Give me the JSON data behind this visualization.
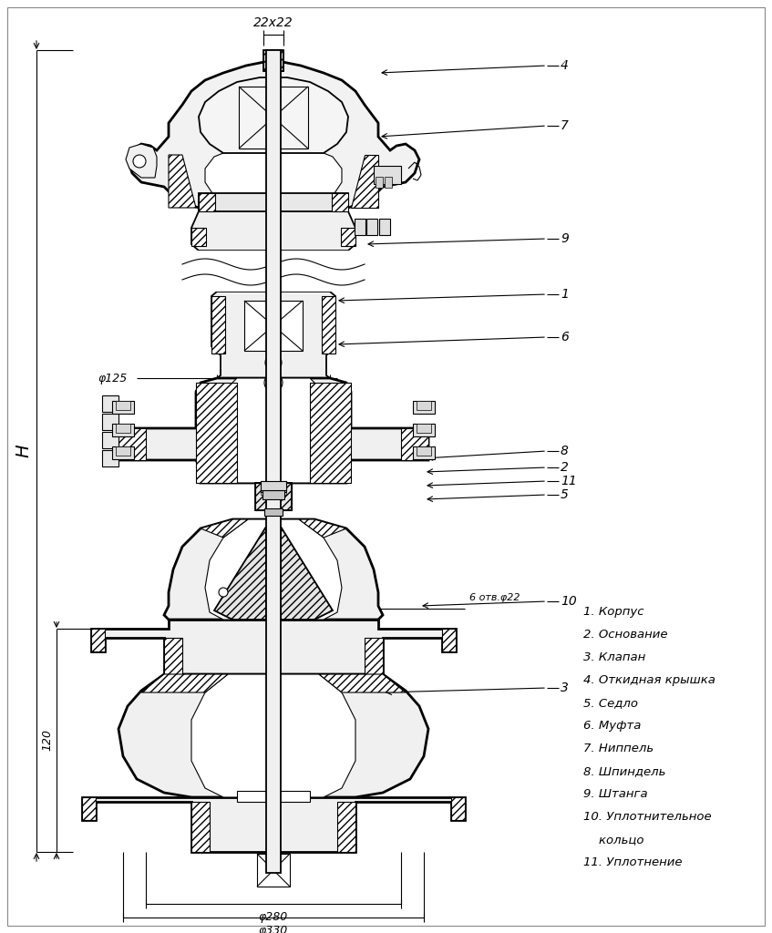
{
  "bg_color": "#ffffff",
  "line_color": "#000000",
  "figsize": [
    8.47,
    10.24
  ],
  "dpi": 100,
  "annotations": {
    "dim_22x22": "22x22",
    "dim_phi125": "φ125",
    "dim_phi280": "φ280",
    "dim_phi330": "φ330",
    "dim_H": "H",
    "dim_120": "120",
    "dim_6otv": "6 отв.φ22"
  },
  "legend": [
    "1. Корпус",
    "2. Основание",
    "3. Клапан",
    "4. Откидная крышка",
    "5. Седло",
    "6. Муфта",
    "7. Ниппель",
    "8. Шпиндель",
    "9. Штанга",
    "10. Уплотнительное",
    "    кольцо",
    "11. Уплотнение"
  ]
}
